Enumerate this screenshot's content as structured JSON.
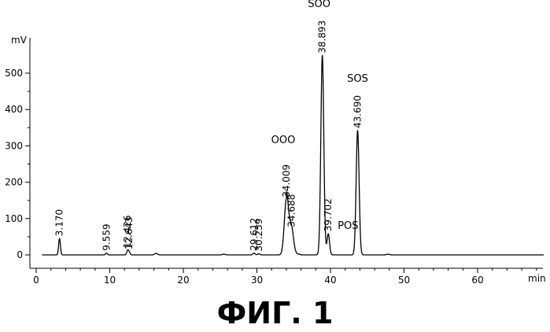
{
  "figure": {
    "caption": "ФИГ. 1"
  },
  "chart_data": {
    "type": "line",
    "title": "",
    "xlabel": "min",
    "ylabel": "mV",
    "xlim": [
      0,
      70
    ],
    "ylim": [
      -20,
      560
    ],
    "x_ticks": [
      0,
      10,
      20,
      30,
      40,
      50,
      60
    ],
    "y_ticks": [
      0,
      100,
      200,
      300,
      400,
      500
    ],
    "peaks": [
      {
        "rt": 3.17,
        "label": "3.170",
        "height": 45,
        "width": 0.12
      },
      {
        "rt": 9.559,
        "label": "9.559",
        "height": 5,
        "width": 0.12
      },
      {
        "rt": 12.426,
        "label": "12.426",
        "height": 12,
        "width": 0.12
      },
      {
        "rt": 12.643,
        "label": "12.643",
        "height": 8,
        "width": 0.12
      },
      {
        "rt": 29.612,
        "label": "29.612",
        "height": 5,
        "width": 0.15
      },
      {
        "rt": 30.259,
        "label": "30.259",
        "height": 3,
        "width": 0.15
      },
      {
        "rt": 34.009,
        "label": "34.009",
        "height": 152,
        "width": 0.28
      },
      {
        "rt": 34.688,
        "label": "34.688",
        "height": 70,
        "width": 0.28
      },
      {
        "rt": 38.893,
        "label": "38.893",
        "height": 548,
        "width": 0.2
      },
      {
        "rt": 39.702,
        "label": "39.702",
        "height": 58,
        "width": 0.17
      },
      {
        "rt": 43.69,
        "label": "43.690",
        "height": 342,
        "width": 0.2
      }
    ],
    "minor_bumps": [
      {
        "rt": 16.3,
        "height": 4,
        "width": 0.2
      },
      {
        "rt": 25.5,
        "height": 2,
        "width": 0.2
      },
      {
        "rt": 47.8,
        "height": 2,
        "width": 0.2
      }
    ],
    "annotations": [
      {
        "text": "OOO",
        "rt": 34.009
      },
      {
        "text": "SOO",
        "rt": 38.893
      },
      {
        "text": "SOS",
        "rt": 43.69
      },
      {
        "text": "POS",
        "rt": 39.702
      }
    ]
  }
}
